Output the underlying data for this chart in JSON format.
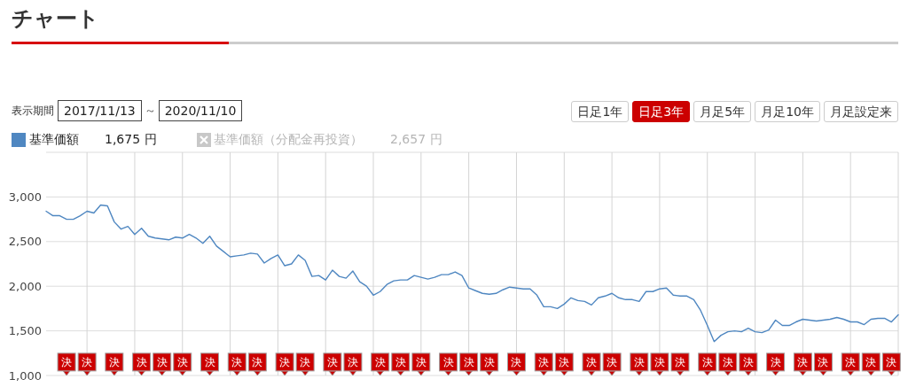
{
  "chart_data": {
    "type": "line",
    "title": "チャート",
    "categories": [
      null,
      null,
      null,
      null,
      null,
      null,
      null,
      null,
      null,
      null,
      null,
      null,
      null,
      null,
      null,
      null,
      null,
      null,
      null,
      null,
      null,
      null,
      null,
      null,
      null,
      null,
      null,
      null,
      null,
      null,
      null,
      null,
      null,
      null,
      null,
      null,
      null,
      null,
      null,
      null,
      null,
      null,
      null,
      null,
      null,
      null,
      null,
      null,
      null,
      null,
      null,
      null,
      null,
      null,
      null,
      null,
      null,
      null,
      null,
      null,
      null,
      null,
      null,
      null,
      null,
      null,
      null,
      null,
      null,
      null,
      null,
      null,
      null,
      null,
      null,
      null,
      null,
      null,
      null,
      null,
      null,
      null,
      null,
      null,
      null,
      null,
      null,
      null,
      null,
      null,
      null,
      null,
      null,
      null,
      null,
      null,
      null,
      null,
      null,
      null,
      null,
      null,
      null,
      null,
      null,
      null,
      null,
      null,
      null,
      null,
      null,
      null,
      null,
      null,
      null,
      null,
      null,
      null,
      null,
      null,
      null,
      null,
      null,
      null,
      null,
      null
    ],
    "series": [
      {
        "name": "基準価額",
        "color": "#4f87c1",
        "values": [
          2840,
          2790,
          2790,
          2750,
          2750,
          2790,
          2840,
          2820,
          2910,
          2900,
          2720,
          2640,
          2670,
          2580,
          2650,
          2560,
          2540,
          2530,
          2520,
          2550,
          2540,
          2580,
          2540,
          2480,
          2560,
          2450,
          2390,
          2330,
          2340,
          2350,
          2370,
          2360,
          2260,
          2310,
          2350,
          2230,
          2250,
          2350,
          2290,
          2110,
          2120,
          2070,
          2180,
          2110,
          2090,
          2170,
          2050,
          2000,
          1900,
          1940,
          2020,
          2060,
          2070,
          2070,
          2120,
          2100,
          2080,
          2100,
          2130,
          2130,
          2160,
          2120,
          1980,
          1950,
          1920,
          1910,
          1920,
          1960,
          1990,
          1980,
          1970,
          1970,
          1900,
          1770,
          1770,
          1750,
          1800,
          1870,
          1840,
          1830,
          1790,
          1870,
          1890,
          1920,
          1870,
          1850,
          1850,
          1830,
          1940,
          1940,
          1970,
          1980,
          1900,
          1890,
          1890,
          1850,
          1730,
          1560,
          1380,
          1450,
          1490,
          1500,
          1490,
          1530,
          1490,
          1480,
          1510,
          1620,
          1560,
          1560,
          1600,
          1630,
          1620,
          1610,
          1620,
          1630,
          1650,
          1630,
          1600,
          1600,
          1570,
          1630,
          1640,
          1640,
          1600,
          1680
        ]
      },
      {
        "type": "scatter",
        "color": "#cc0000",
        "marker": "square",
        "values": [
          null,
          null,
          null,
          1150,
          null,
          null,
          1150,
          null,
          null,
          null,
          1150,
          null,
          null,
          null,
          1150,
          null,
          null,
          1150,
          null,
          null,
          1150,
          null,
          null,
          null,
          1150,
          null,
          null,
          null,
          1150,
          null,
          null,
          1150,
          null,
          null,
          null,
          1150,
          null,
          null,
          1150,
          null,
          null,
          null,
          1150,
          null,
          null,
          1150,
          null,
          null,
          null,
          1150,
          null,
          null,
          1150,
          null,
          null,
          1150,
          null,
          null,
          null,
          1150,
          null,
          null,
          1150,
          null,
          null,
          1150,
          null,
          null,
          null,
          1150,
          null,
          null,
          null,
          1150,
          null,
          null,
          1150,
          null,
          null,
          null,
          1150,
          null,
          null,
          1150,
          null,
          null,
          null,
          1150,
          null,
          null,
          1150,
          null,
          null,
          1150,
          null,
          null,
          null,
          1150,
          null,
          null,
          1150,
          null,
          null,
          1150,
          null,
          null,
          null,
          1150,
          null,
          null,
          null,
          1150,
          null,
          null,
          1150,
          null,
          null,
          null,
          1150,
          null,
          null,
          1150,
          null,
          null,
          1150,
          null
        ],
        "value_labels": [
          null,
          null,
          null,
          "決",
          null,
          null,
          "決",
          null,
          null,
          null,
          "決",
          null,
          null,
          null,
          "決",
          null,
          null,
          "決",
          null,
          null,
          "決",
          null,
          null,
          null,
          "決",
          null,
          null,
          null,
          "決",
          null,
          null,
          "決",
          null,
          null,
          null,
          "決",
          null,
          null,
          "決",
          null,
          null,
          null,
          "決",
          null,
          null,
          "決",
          null,
          null,
          null,
          "決",
          null,
          null,
          "決",
          null,
          null,
          "決",
          null,
          null,
          null,
          "決",
          null,
          null,
          "決",
          null,
          null,
          "決",
          null,
          null,
          null,
          "決",
          null,
          null,
          null,
          "決",
          null,
          null,
          "決",
          null,
          null,
          null,
          "決",
          null,
          null,
          "決",
          null,
          null,
          null,
          "決",
          null,
          null,
          "決",
          null,
          null,
          "決",
          null,
          null,
          null,
          "決",
          null,
          null,
          "決",
          null,
          null,
          "決",
          null,
          null,
          null,
          "決",
          null,
          null,
          null,
          "決",
          null,
          null,
          "決",
          null,
          null,
          null,
          "決",
          null,
          null,
          "決",
          null,
          null,
          "決",
          null
        ]
      }
    ],
    "ylim": [
      1000,
      3500
    ],
    "yticks": [
      {
        "value": 1000,
        "label": "1,000"
      },
      {
        "value": 1500,
        "label": "1,500"
      },
      {
        "value": 2000,
        "label": "2,000"
      },
      {
        "value": 2500,
        "label": "2,500"
      },
      {
        "value": 3000,
        "label": "3,000"
      },
      {
        "value": 3500,
        "label": null
      }
    ],
    "tick_labels": "y",
    "grid": true,
    "legend": "top left",
    "annotations": [
      "表示期間",
      "2017/11/13",
      "～",
      "2020/11/10",
      "日足1年",
      "日足3年",
      "月足5年",
      "月足10年",
      "月足設定来",
      "1,675 円",
      "基準価額（分配金再投資）",
      "2,657 円"
    ]
  }
}
